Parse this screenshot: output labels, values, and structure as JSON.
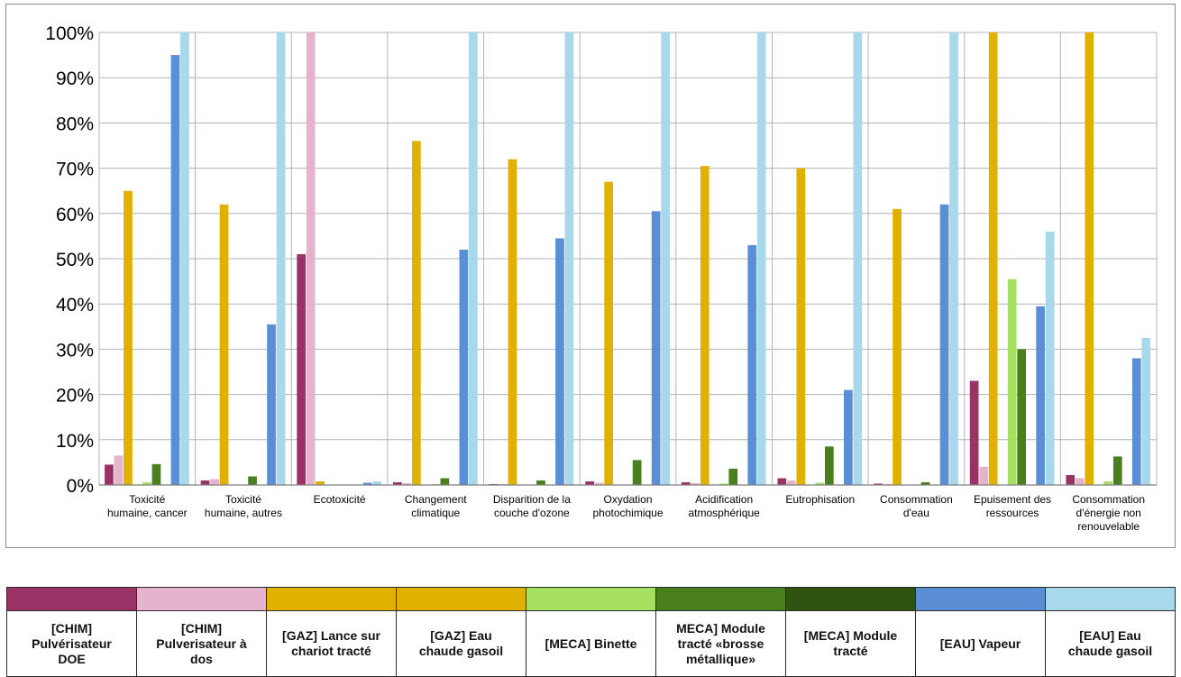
{
  "chart_data": {
    "type": "bar",
    "categories": [
      [
        "Toxicité",
        "humaine, cancer"
      ],
      [
        "Toxicité",
        "humaine, autres"
      ],
      [
        "Ecotoxicité"
      ],
      [
        "Changement",
        "climatique"
      ],
      [
        "Disparition de la",
        "couche d'ozone"
      ],
      [
        "Oxydation",
        "photochimique"
      ],
      [
        "Acidification",
        "atmosphérique"
      ],
      [
        "Eutrophisation"
      ],
      [
        "Consommation",
        "d'eau"
      ],
      [
        "Epuisement des",
        "ressources"
      ],
      [
        "Consommation",
        "d'énergie non",
        "renouvelable"
      ]
    ],
    "ylim": [
      0,
      100
    ],
    "yticks": [
      "0%",
      "10%",
      "20%",
      "30%",
      "40%",
      "50%",
      "60%",
      "70%",
      "80%",
      "90%",
      "100%"
    ],
    "grid": true,
    "legend_position": "bottom",
    "series": [
      {
        "name": [
          "[CHIM]",
          "Pulvérisateur",
          "DOE"
        ],
        "color": "#993366",
        "values": [
          4.5,
          1.0,
          51,
          0.6,
          0.2,
          0.8,
          0.6,
          1.5,
          0.3,
          23,
          2.2
        ]
      },
      {
        "name": [
          "[CHIM]",
          "Pulverisateur à",
          "dos"
        ],
        "color": "#e6b3cc",
        "values": [
          6.5,
          1.3,
          100,
          0.4,
          0.2,
          0.5,
          0.4,
          1.0,
          0.2,
          4.0,
          1.5
        ]
      },
      {
        "name": [
          "[GAZ] Lance sur",
          "chariot tracté"
        ],
        "color": "#e0b100",
        "values": [
          65,
          62,
          0.8,
          76,
          72,
          67,
          70.5,
          70,
          61,
          100,
          100
        ]
      },
      {
        "name": [
          "[GAZ] Eau",
          "chaude gasoil"
        ],
        "color": "#e0b100",
        "values": [
          0,
          0,
          0,
          0,
          0,
          0,
          0,
          0,
          0,
          0,
          0
        ]
      },
      {
        "name": [
          "[MECA] Binette"
        ],
        "color": "#a6e060",
        "values": [
          0.6,
          0.1,
          0.1,
          0.2,
          0.1,
          0.1,
          0.3,
          0.5,
          0.1,
          45.5,
          0.8
        ]
      },
      {
        "name": [
          "MECA] Module",
          "tracté «brosse",
          "métallique»"
        ],
        "color": "#4a7f1e",
        "values": [
          4.6,
          1.9,
          0.1,
          1.5,
          1.0,
          5.5,
          3.6,
          8.5,
          0.6,
          30,
          6.3
        ]
      },
      {
        "name": [
          "[MECA] Module",
          "tracté"
        ],
        "color": "#2f5310",
        "values": [
          0,
          0,
          0,
          0,
          0,
          0,
          0,
          0,
          0,
          0,
          0
        ]
      },
      {
        "name": [
          "[EAU] Vapeur"
        ],
        "color": "#5a8fd6",
        "values": [
          95,
          35.5,
          0.5,
          52,
          54.5,
          60.5,
          53,
          21,
          62,
          39.5,
          28
        ]
      },
      {
        "name": [
          "[EAU] Eau",
          "chaude gasoil"
        ],
        "color": "#a8d8ec",
        "values": [
          100,
          100,
          0.8,
          100,
          100,
          100,
          100,
          100,
          100,
          56,
          32.5
        ]
      }
    ]
  }
}
